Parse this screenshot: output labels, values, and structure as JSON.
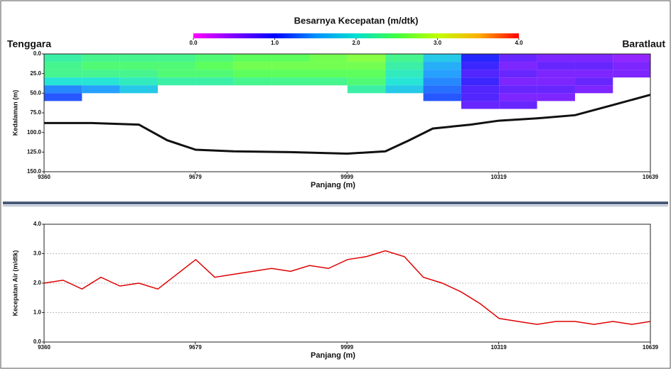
{
  "chart_data": [
    {
      "type": "heatmap",
      "title": "Besarnya Kecepatan (m/dtk)",
      "left_label": "Tenggara",
      "right_label": "Baratlaut",
      "xlabel": "Panjang (m)",
      "ylabel": "Kedalaman (m)",
      "xlim": [
        9360,
        10639
      ],
      "xticks": [
        9360,
        9679,
        9999,
        10319,
        10639
      ],
      "ylim": [
        0,
        150
      ],
      "invert_y": true,
      "yticks": [
        {
          "value": 0,
          "label": "0.0"
        },
        {
          "value": 25,
          "label": "25.0"
        },
        {
          "value": 50,
          "label": "50.0"
        },
        {
          "value": 75,
          "label": "75.0"
        },
        {
          "value": 100,
          "label": "100.0"
        },
        {
          "value": 125,
          "label": "125.0"
        },
        {
          "value": 150,
          "label": "150.0"
        }
      ],
      "clim": [
        0,
        4
      ],
      "cticks": [
        {
          "value": 0,
          "label": "0.0"
        },
        {
          "value": 1,
          "label": "1.0"
        },
        {
          "value": 2,
          "label": "2.0"
        },
        {
          "value": 3,
          "label": "3.0"
        },
        {
          "value": 4,
          "label": "4.0"
        }
      ],
      "colorscale": [
        "#ff00ff",
        "#8000ff",
        "#0000ff",
        "#0090ff",
        "#00e0d0",
        "#40ff40",
        "#c0ff00",
        "#ffb000",
        "#ff0000"
      ],
      "x": [
        9400,
        9480,
        9560,
        9640,
        9720,
        9800,
        9880,
        9960,
        10040,
        10120,
        10200,
        10280,
        10360,
        10440,
        10520,
        10600
      ],
      "depths": [
        5,
        15,
        25,
        35,
        45,
        55,
        65,
        75
      ],
      "values": [
        [
          2.2,
          2.3,
          2.3,
          2.3,
          2.4,
          2.5,
          2.5,
          2.6,
          2.7,
          2.3,
          1.8,
          1.0,
          0.7,
          0.6,
          0.6,
          0.5
        ],
        [
          2.3,
          2.4,
          2.4,
          2.4,
          2.5,
          2.6,
          2.6,
          2.6,
          2.6,
          2.2,
          1.6,
          0.9,
          0.6,
          0.7,
          0.7,
          0.6
        ],
        [
          2.3,
          2.3,
          2.3,
          2.4,
          2.4,
          2.5,
          2.5,
          2.5,
          2.5,
          2.1,
          1.5,
          0.8,
          0.7,
          0.6,
          0.6,
          0.6
        ],
        [
          2.0,
          2.0,
          2.1,
          2.2,
          2.2,
          2.3,
          2.3,
          2.3,
          2.4,
          2.0,
          1.4,
          0.9,
          0.6,
          0.6,
          0.7,
          null
        ],
        [
          1.4,
          1.5,
          1.8,
          null,
          null,
          null,
          null,
          null,
          2.2,
          1.8,
          1.3,
          0.8,
          0.7,
          0.7,
          0.6,
          null
        ],
        [
          1.2,
          null,
          null,
          null,
          null,
          null,
          null,
          null,
          null,
          null,
          1.2,
          0.8,
          0.6,
          0.6,
          null,
          null
        ],
        [
          null,
          null,
          null,
          null,
          null,
          null,
          null,
          null,
          null,
          null,
          null,
          0.7,
          0.7,
          null,
          null,
          null
        ],
        [
          null,
          null,
          null,
          null,
          null,
          null,
          null,
          null,
          null,
          null,
          null,
          null,
          null,
          null,
          null,
          null
        ]
      ],
      "bed_x": [
        9360,
        9460,
        9560,
        9620,
        9680,
        9760,
        9880,
        9999,
        10080,
        10130,
        10180,
        10260,
        10319,
        10400,
        10480,
        10560,
        10639
      ],
      "bed_depth": [
        88,
        88,
        90,
        110,
        122,
        124,
        125,
        127,
        124,
        110,
        95,
        90,
        85,
        82,
        78,
        65,
        52
      ],
      "bed_color": "#111111",
      "grid": false
    },
    {
      "type": "line",
      "xlabel": "Panjang (m)",
      "ylabel": "Kecepatan Air (m/dtk)",
      "xlim": [
        9360,
        10639
      ],
      "xticks": [
        9360,
        9679,
        9999,
        10319,
        10639
      ],
      "ylim": [
        0,
        4
      ],
      "yticks": [
        {
          "value": 0,
          "label": "0.0"
        },
        {
          "value": 1,
          "label": "1.0"
        },
        {
          "value": 2,
          "label": "2.0"
        },
        {
          "value": 3,
          "label": "3.0"
        },
        {
          "value": 4,
          "label": "4.0"
        }
      ],
      "grid": true,
      "color": "#e00000",
      "x": [
        9360,
        9400,
        9440,
        9480,
        9520,
        9560,
        9600,
        9640,
        9680,
        9720,
        9760,
        9800,
        9840,
        9880,
        9920,
        9960,
        10000,
        10040,
        10080,
        10120,
        10160,
        10200,
        10240,
        10280,
        10320,
        10360,
        10400,
        10440,
        10480,
        10520,
        10560,
        10600,
        10639
      ],
      "values": [
        2.0,
        2.1,
        1.8,
        2.2,
        1.9,
        2.0,
        1.8,
        2.3,
        2.8,
        2.2,
        2.3,
        2.4,
        2.5,
        2.4,
        2.6,
        2.5,
        2.8,
        2.9,
        3.1,
        2.9,
        2.2,
        2.0,
        1.7,
        1.3,
        0.8,
        0.7,
        0.6,
        0.7,
        0.7,
        0.6,
        0.7,
        0.6,
        0.7
      ]
    }
  ]
}
